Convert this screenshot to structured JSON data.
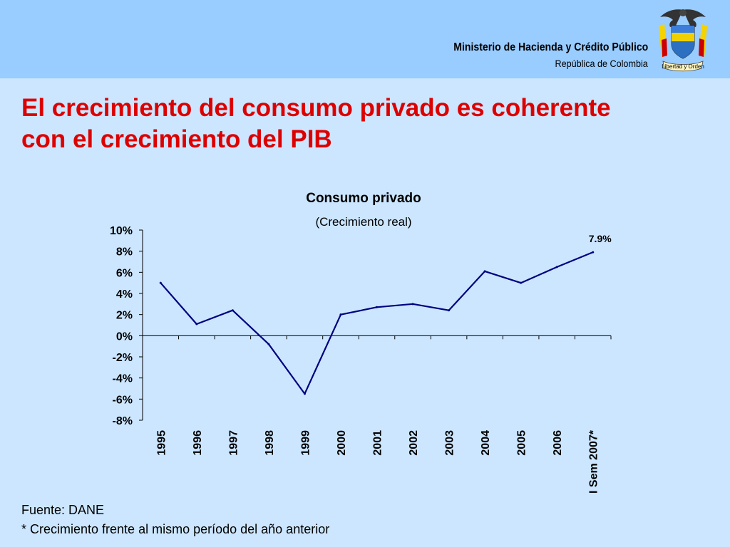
{
  "header": {
    "ministry": "Ministerio de Hacienda y Crédito Público",
    "country": "República de Colombia",
    "motto": "Libertad y Orden",
    "background": "#99ccff"
  },
  "slide": {
    "title_line1": "El crecimiento del consumo privado es coherente",
    "title_line2": "con el crecimiento del PIB",
    "title_color": "#dd0000",
    "background": "#cce6ff"
  },
  "chart_data": {
    "type": "line",
    "title": "Consumo privado",
    "subtitle": "(Crecimiento real)",
    "categories": [
      "1995",
      "1996",
      "1997",
      "1998",
      "1999",
      "2000",
      "2001",
      "2002",
      "2003",
      "2004",
      "2005",
      "2006",
      "I Sem 2007*"
    ],
    "values": [
      5.0,
      1.1,
      2.4,
      -0.8,
      -5.5,
      2.0,
      2.7,
      3.0,
      2.4,
      6.1,
      5.0,
      6.5,
      7.9
    ],
    "ylim": [
      -8,
      10
    ],
    "yticks": [
      "10%",
      "8%",
      "6%",
      "4%",
      "2%",
      "0%",
      "-2%",
      "-4%",
      "-6%",
      "-8%"
    ],
    "annotations": [
      {
        "index": 12,
        "text": "7.9%"
      }
    ],
    "line_color": "#000080",
    "grid": false
  },
  "footer": {
    "source": "Fuente: DANE",
    "note": "* Crecimiento frente al mismo período del año anterior"
  }
}
